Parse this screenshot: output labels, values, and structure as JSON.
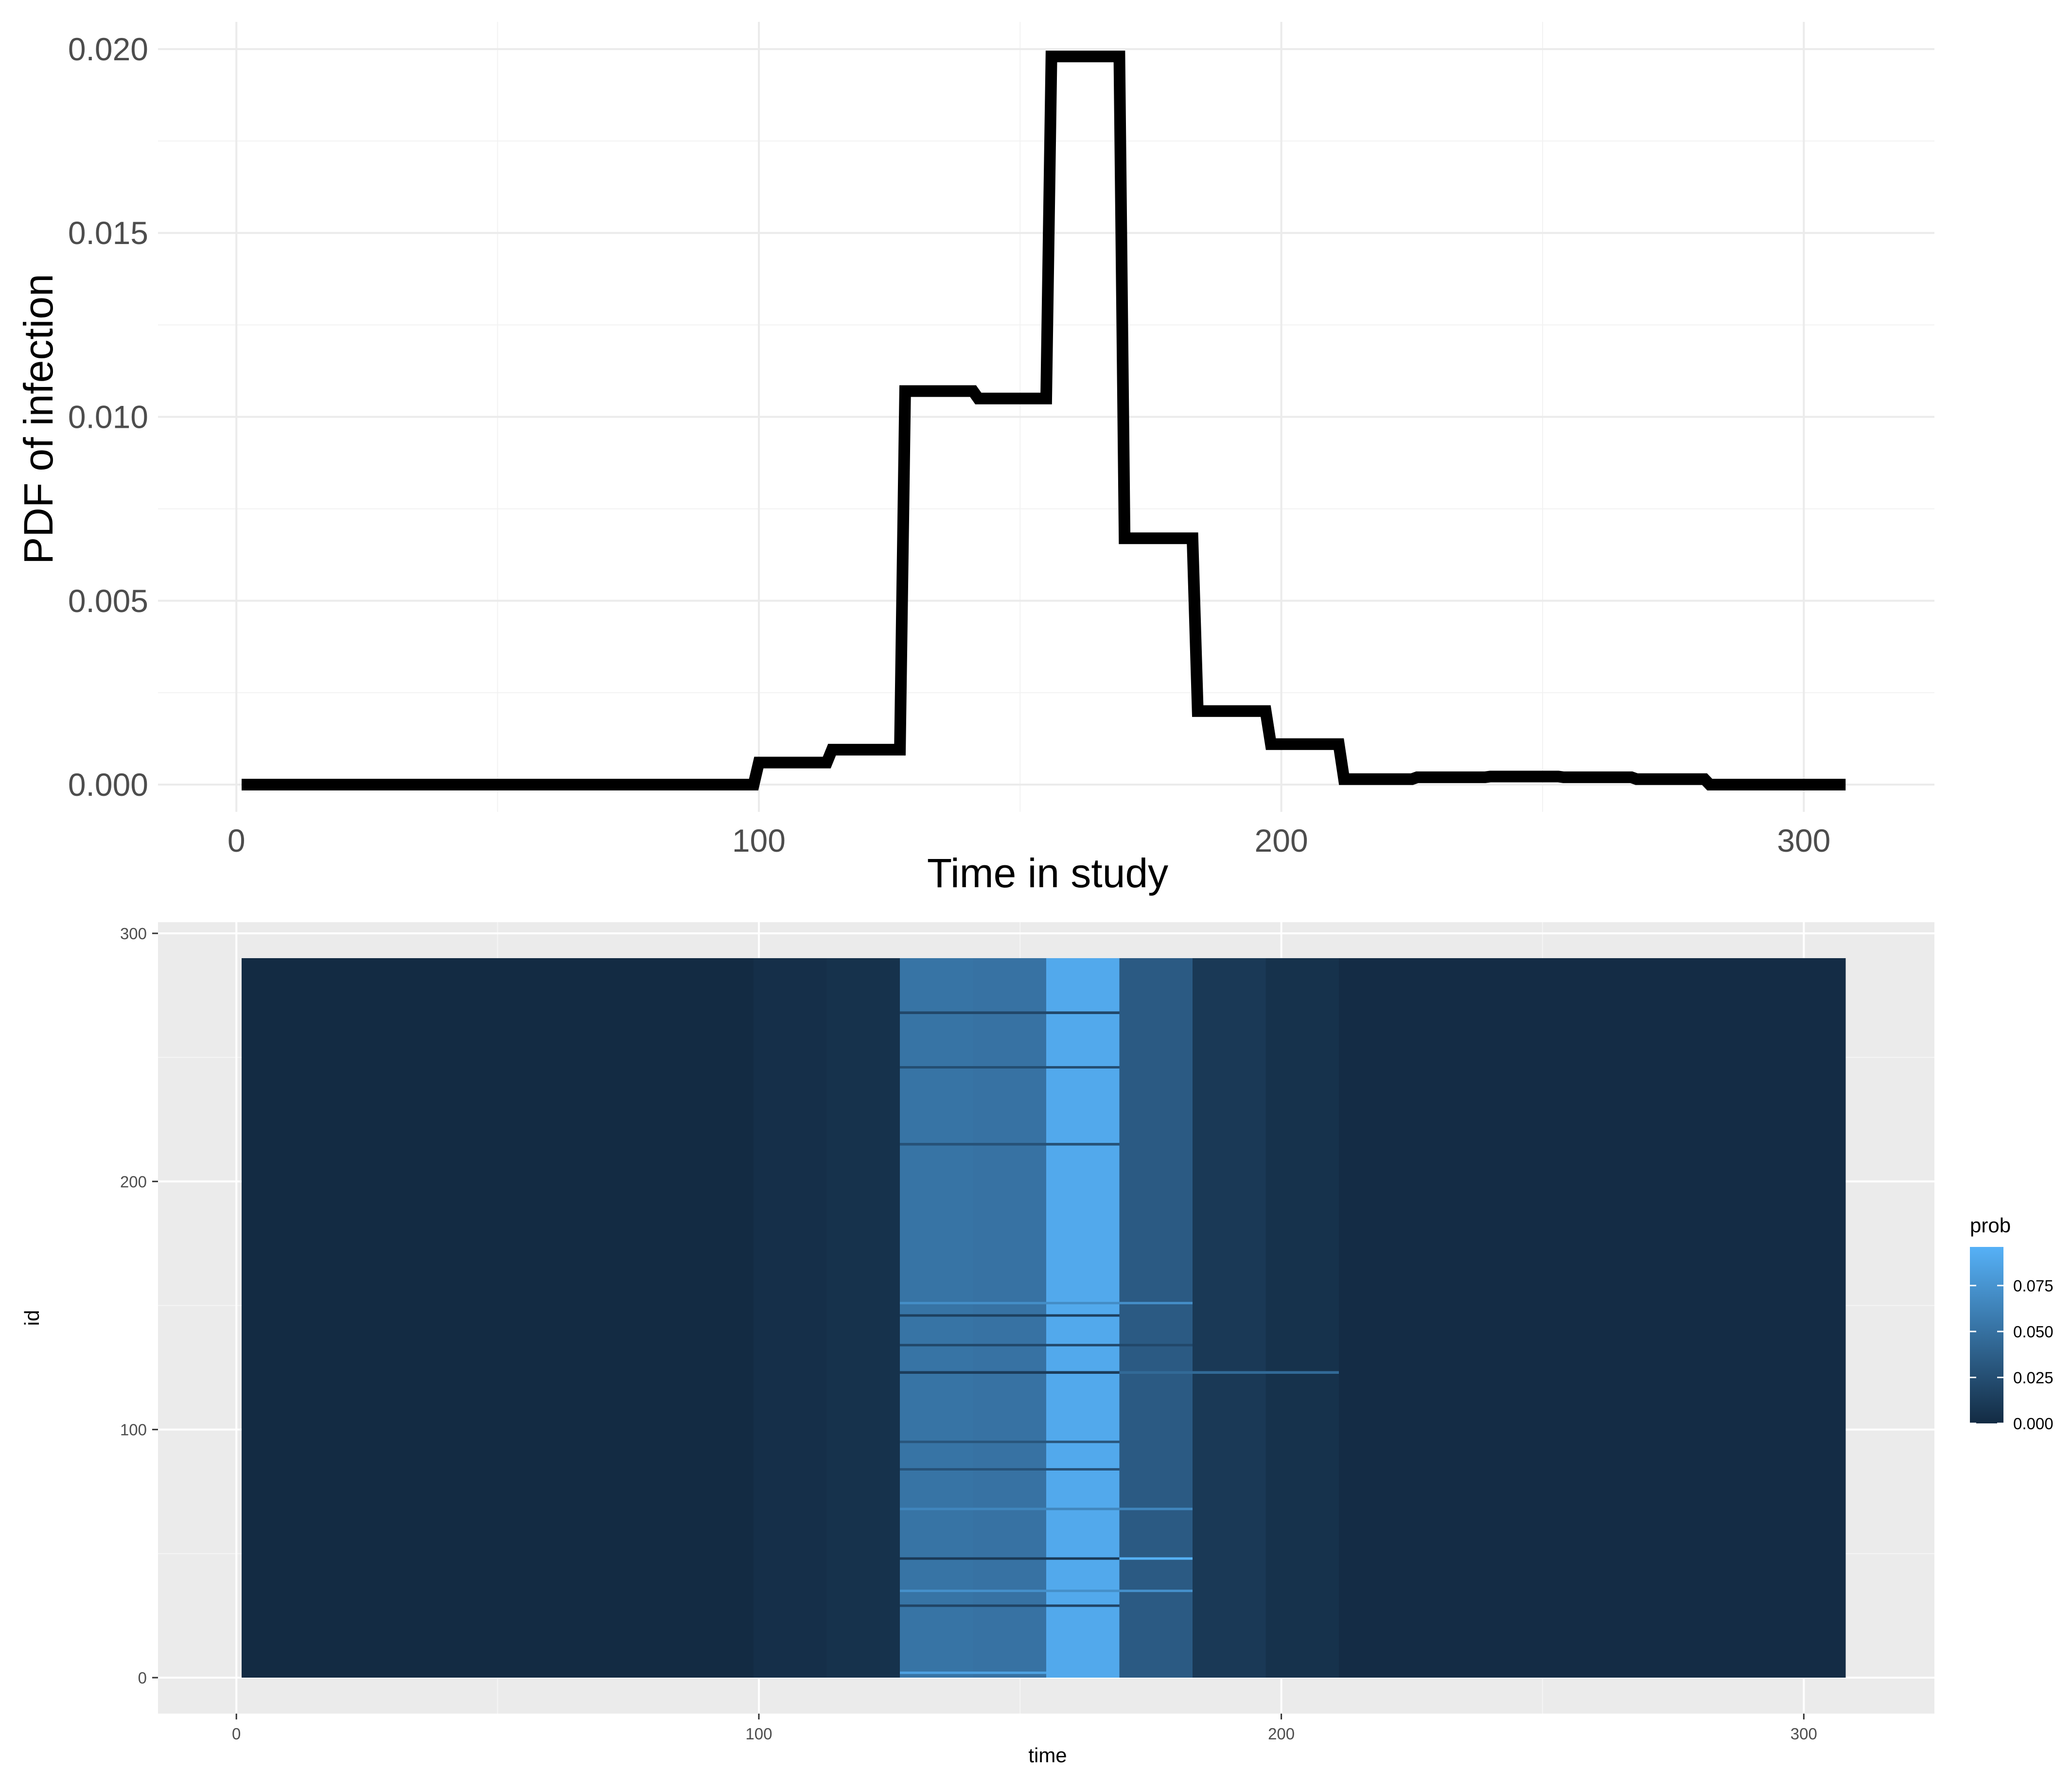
{
  "chart_data": [
    {
      "type": "line",
      "title": "",
      "xlabel": "Time in study",
      "ylabel": "PDF of infection",
      "xlim": [
        -15,
        325
      ],
      "ylim": [
        -0.00074,
        0.02074
      ],
      "x_ticks": [
        0,
        100,
        200,
        300
      ],
      "x_tick_labels": [
        "0",
        "100",
        "200",
        "300"
      ],
      "y_ticks": [
        0.0,
        0.005,
        0.01,
        0.015,
        0.02
      ],
      "y_tick_labels": [
        "0.000",
        "0.005",
        "0.010",
        "0.015",
        "0.020"
      ],
      "grid": true,
      "line_style": "step",
      "series": [
        {
          "x": [
            1,
            99,
            100,
            113,
            114,
            127,
            128,
            141,
            142,
            155,
            156,
            169,
            170,
            183,
            184,
            197,
            198,
            211,
            212,
            225,
            226,
            239,
            240,
            253,
            254,
            267,
            268,
            281,
            282,
            308
          ],
          "y": [
            0.0,
            0.0,
            0.0006,
            0.0006,
            0.00095,
            0.00095,
            0.0107,
            0.0107,
            0.0105,
            0.0105,
            0.0198,
            0.0198,
            0.0067,
            0.0067,
            0.002,
            0.002,
            0.0011,
            0.0011,
            0.00015,
            0.00015,
            0.0002,
            0.0002,
            0.00022,
            0.00022,
            0.0002,
            0.0002,
            0.00015,
            0.00015,
            0.0,
            0.0
          ]
        }
      ]
    },
    {
      "type": "heatmap",
      "title": "",
      "xlabel": "time",
      "ylabel": "id",
      "xlim": [
        -15,
        325
      ],
      "ylim": [
        -14.5,
        304.5
      ],
      "x_ticks": [
        0,
        100,
        200,
        300
      ],
      "x_tick_labels": [
        "0",
        "100",
        "200",
        "300"
      ],
      "y_ticks": [
        0,
        100,
        200,
        300
      ],
      "y_tick_labels": [
        "0",
        "100",
        "200",
        "300"
      ],
      "id_range": [
        0,
        290
      ],
      "grid": true,
      "legend": {
        "title": "prob",
        "position": "right",
        "range": [
          0,
          0.096
        ],
        "ticks": [
          0.0,
          0.025,
          0.05,
          0.075
        ],
        "tick_labels": [
          "0.000",
          "0.025",
          "0.050",
          "0.075"
        ],
        "color_low": "#132B43",
        "color_high": "#56B1F7"
      },
      "time_bins": [
        {
          "x0": 1,
          "x1": 99,
          "prob": 0.0
        },
        {
          "x0": 99,
          "x1": 113,
          "prob": 0.003
        },
        {
          "x0": 113,
          "x1": 127,
          "prob": 0.005
        },
        {
          "x0": 127,
          "x1": 141,
          "prob": 0.052
        },
        {
          "x0": 141,
          "x1": 155,
          "prob": 0.051
        },
        {
          "x0": 155,
          "x1": 169,
          "prob": 0.09
        },
        {
          "x0": 169,
          "x1": 183,
          "prob": 0.034
        },
        {
          "x0": 183,
          "x1": 197,
          "prob": 0.01
        },
        {
          "x0": 197,
          "x1": 211,
          "prob": 0.005
        },
        {
          "x0": 211,
          "x1": 308,
          "prob": 0.001
        }
      ],
      "row_variations": [
        {
          "id": 268,
          "x0": 127,
          "x1": 169,
          "prob": 0.02
        },
        {
          "id": 246,
          "x0": 127,
          "x1": 169,
          "prob": 0.025
        },
        {
          "id": 215,
          "x0": 127,
          "x1": 169,
          "prob": 0.028
        },
        {
          "id": 151,
          "x0": 127,
          "x1": 183,
          "prob": 0.07
        },
        {
          "id": 146,
          "x0": 127,
          "x1": 169,
          "prob": 0.015
        },
        {
          "id": 134,
          "x0": 127,
          "x1": 183,
          "prob": 0.02
        },
        {
          "id": 123,
          "x0": 127,
          "x1": 169,
          "prob": 0.012
        },
        {
          "id": 123,
          "x0": 169,
          "x1": 211,
          "prob": 0.045
        },
        {
          "id": 95,
          "x0": 127,
          "x1": 169,
          "prob": 0.03
        },
        {
          "id": 84,
          "x0": 127,
          "x1": 169,
          "prob": 0.028
        },
        {
          "id": 68,
          "x0": 127,
          "x1": 183,
          "prob": 0.065
        },
        {
          "id": 48,
          "x0": 127,
          "x1": 169,
          "prob": 0.01
        },
        {
          "id": 48,
          "x0": 169,
          "x1": 183,
          "prob": 0.096
        },
        {
          "id": 35,
          "x0": 127,
          "x1": 183,
          "prob": 0.072
        },
        {
          "id": 29,
          "x0": 127,
          "x1": 169,
          "prob": 0.018
        },
        {
          "id": 2,
          "x0": 127,
          "x1": 155,
          "prob": 0.085
        }
      ]
    }
  ]
}
